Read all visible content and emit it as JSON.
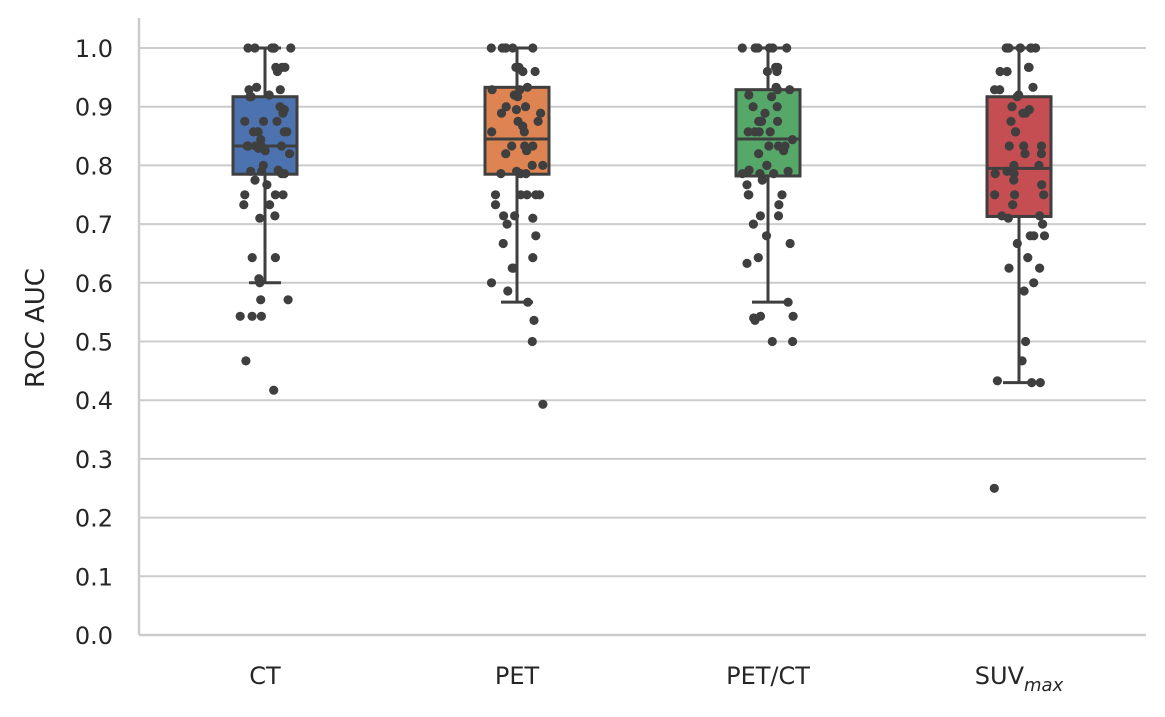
{
  "chart_data": {
    "type": "box",
    "title": "",
    "xlabel": "",
    "ylabel": "ROC AUC",
    "ylim": [
      0.0,
      1.0
    ],
    "yticks": [
      "0.0",
      "0.1",
      "0.2",
      "0.3",
      "0.4",
      "0.5",
      "0.6",
      "0.7",
      "0.8",
      "0.9",
      "1.0"
    ],
    "grid": "horizontal",
    "categories": [
      {
        "label": "CT",
        "sub": ""
      },
      {
        "label": "PET",
        "sub": ""
      },
      {
        "label": "PET/CT",
        "sub": ""
      },
      {
        "label": "SUV",
        "sub": "max"
      }
    ],
    "colors": [
      "#4c72b0",
      "#dd8452",
      "#55a868",
      "#c44e52"
    ],
    "line_color": "#3f3f3f",
    "boxes": [
      {
        "name": "CT",
        "whisker_low": 0.6,
        "q1": 0.785,
        "median": 0.833,
        "q3": 0.917,
        "whisker_high": 1.0
      },
      {
        "name": "PET",
        "whisker_low": 0.567,
        "q1": 0.785,
        "median": 0.845,
        "q3": 0.933,
        "whisker_high": 1.0
      },
      {
        "name": "PET/CT",
        "whisker_low": 0.567,
        "q1": 0.782,
        "median": 0.845,
        "q3": 0.929,
        "whisker_high": 1.0
      },
      {
        "name": "SUVmax",
        "whisker_low": 0.43,
        "q1": 0.713,
        "median": 0.795,
        "q3": 0.917,
        "whisker_high": 1.0
      }
    ],
    "points": [
      [
        1.0,
        1.0,
        1.0,
        1.0,
        1.0,
        1.0,
        1.0,
        0.967,
        0.967,
        0.967,
        0.96,
        0.933,
        0.929,
        0.929,
        0.92,
        0.917,
        0.917,
        0.9,
        0.895,
        0.889,
        0.875,
        0.875,
        0.875,
        0.857,
        0.857,
        0.857,
        0.857,
        0.857,
        0.844,
        0.833,
        0.833,
        0.833,
        0.833,
        0.833,
        0.829,
        0.825,
        0.82,
        0.8,
        0.792,
        0.79,
        0.79,
        0.786,
        0.786,
        0.775,
        0.767,
        0.75,
        0.75,
        0.75,
        0.733,
        0.733,
        0.714,
        0.71,
        0.643,
        0.643,
        0.607,
        0.6,
        0.571,
        0.571,
        0.543,
        0.543,
        0.543,
        0.467,
        0.417
      ],
      [
        1.0,
        1.0,
        1.0,
        1.0,
        1.0,
        1.0,
        0.967,
        0.967,
        0.96,
        0.96,
        0.933,
        0.929,
        0.929,
        0.92,
        0.917,
        0.9,
        0.9,
        0.895,
        0.889,
        0.889,
        0.875,
        0.875,
        0.867,
        0.857,
        0.857,
        0.833,
        0.833,
        0.833,
        0.825,
        0.82,
        0.8,
        0.8,
        0.79,
        0.786,
        0.786,
        0.786,
        0.75,
        0.75,
        0.75,
        0.75,
        0.75,
        0.733,
        0.714,
        0.714,
        0.71,
        0.7,
        0.68,
        0.667,
        0.643,
        0.625,
        0.625,
        0.6,
        0.586,
        0.567,
        0.536,
        0.5,
        0.393
      ],
      [
        1.0,
        1.0,
        1.0,
        1.0,
        1.0,
        1.0,
        0.967,
        0.967,
        0.96,
        0.96,
        0.933,
        0.929,
        0.929,
        0.92,
        0.917,
        0.9,
        0.9,
        0.889,
        0.875,
        0.875,
        0.875,
        0.875,
        0.857,
        0.857,
        0.857,
        0.857,
        0.844,
        0.833,
        0.833,
        0.833,
        0.825,
        0.82,
        0.8,
        0.8,
        0.792,
        0.79,
        0.786,
        0.786,
        0.786,
        0.775,
        0.767,
        0.75,
        0.75,
        0.75,
        0.75,
        0.733,
        0.714,
        0.714,
        0.7,
        0.68,
        0.667,
        0.643,
        0.633,
        0.567,
        0.543,
        0.543,
        0.54,
        0.536,
        0.5,
        0.5
      ],
      [
        1.0,
        1.0,
        1.0,
        1.0,
        1.0,
        1.0,
        1.0,
        1.0,
        0.967,
        0.967,
        0.96,
        0.96,
        0.933,
        0.929,
        0.929,
        0.92,
        0.917,
        0.9,
        0.895,
        0.889,
        0.889,
        0.875,
        0.857,
        0.857,
        0.833,
        0.833,
        0.833,
        0.82,
        0.82,
        0.8,
        0.8,
        0.79,
        0.786,
        0.786,
        0.775,
        0.767,
        0.75,
        0.75,
        0.75,
        0.733,
        0.714,
        0.714,
        0.71,
        0.7,
        0.68,
        0.68,
        0.68,
        0.667,
        0.643,
        0.625,
        0.625,
        0.6,
        0.586,
        0.5,
        0.467,
        0.433,
        0.43,
        0.43,
        0.25
      ]
    ]
  }
}
